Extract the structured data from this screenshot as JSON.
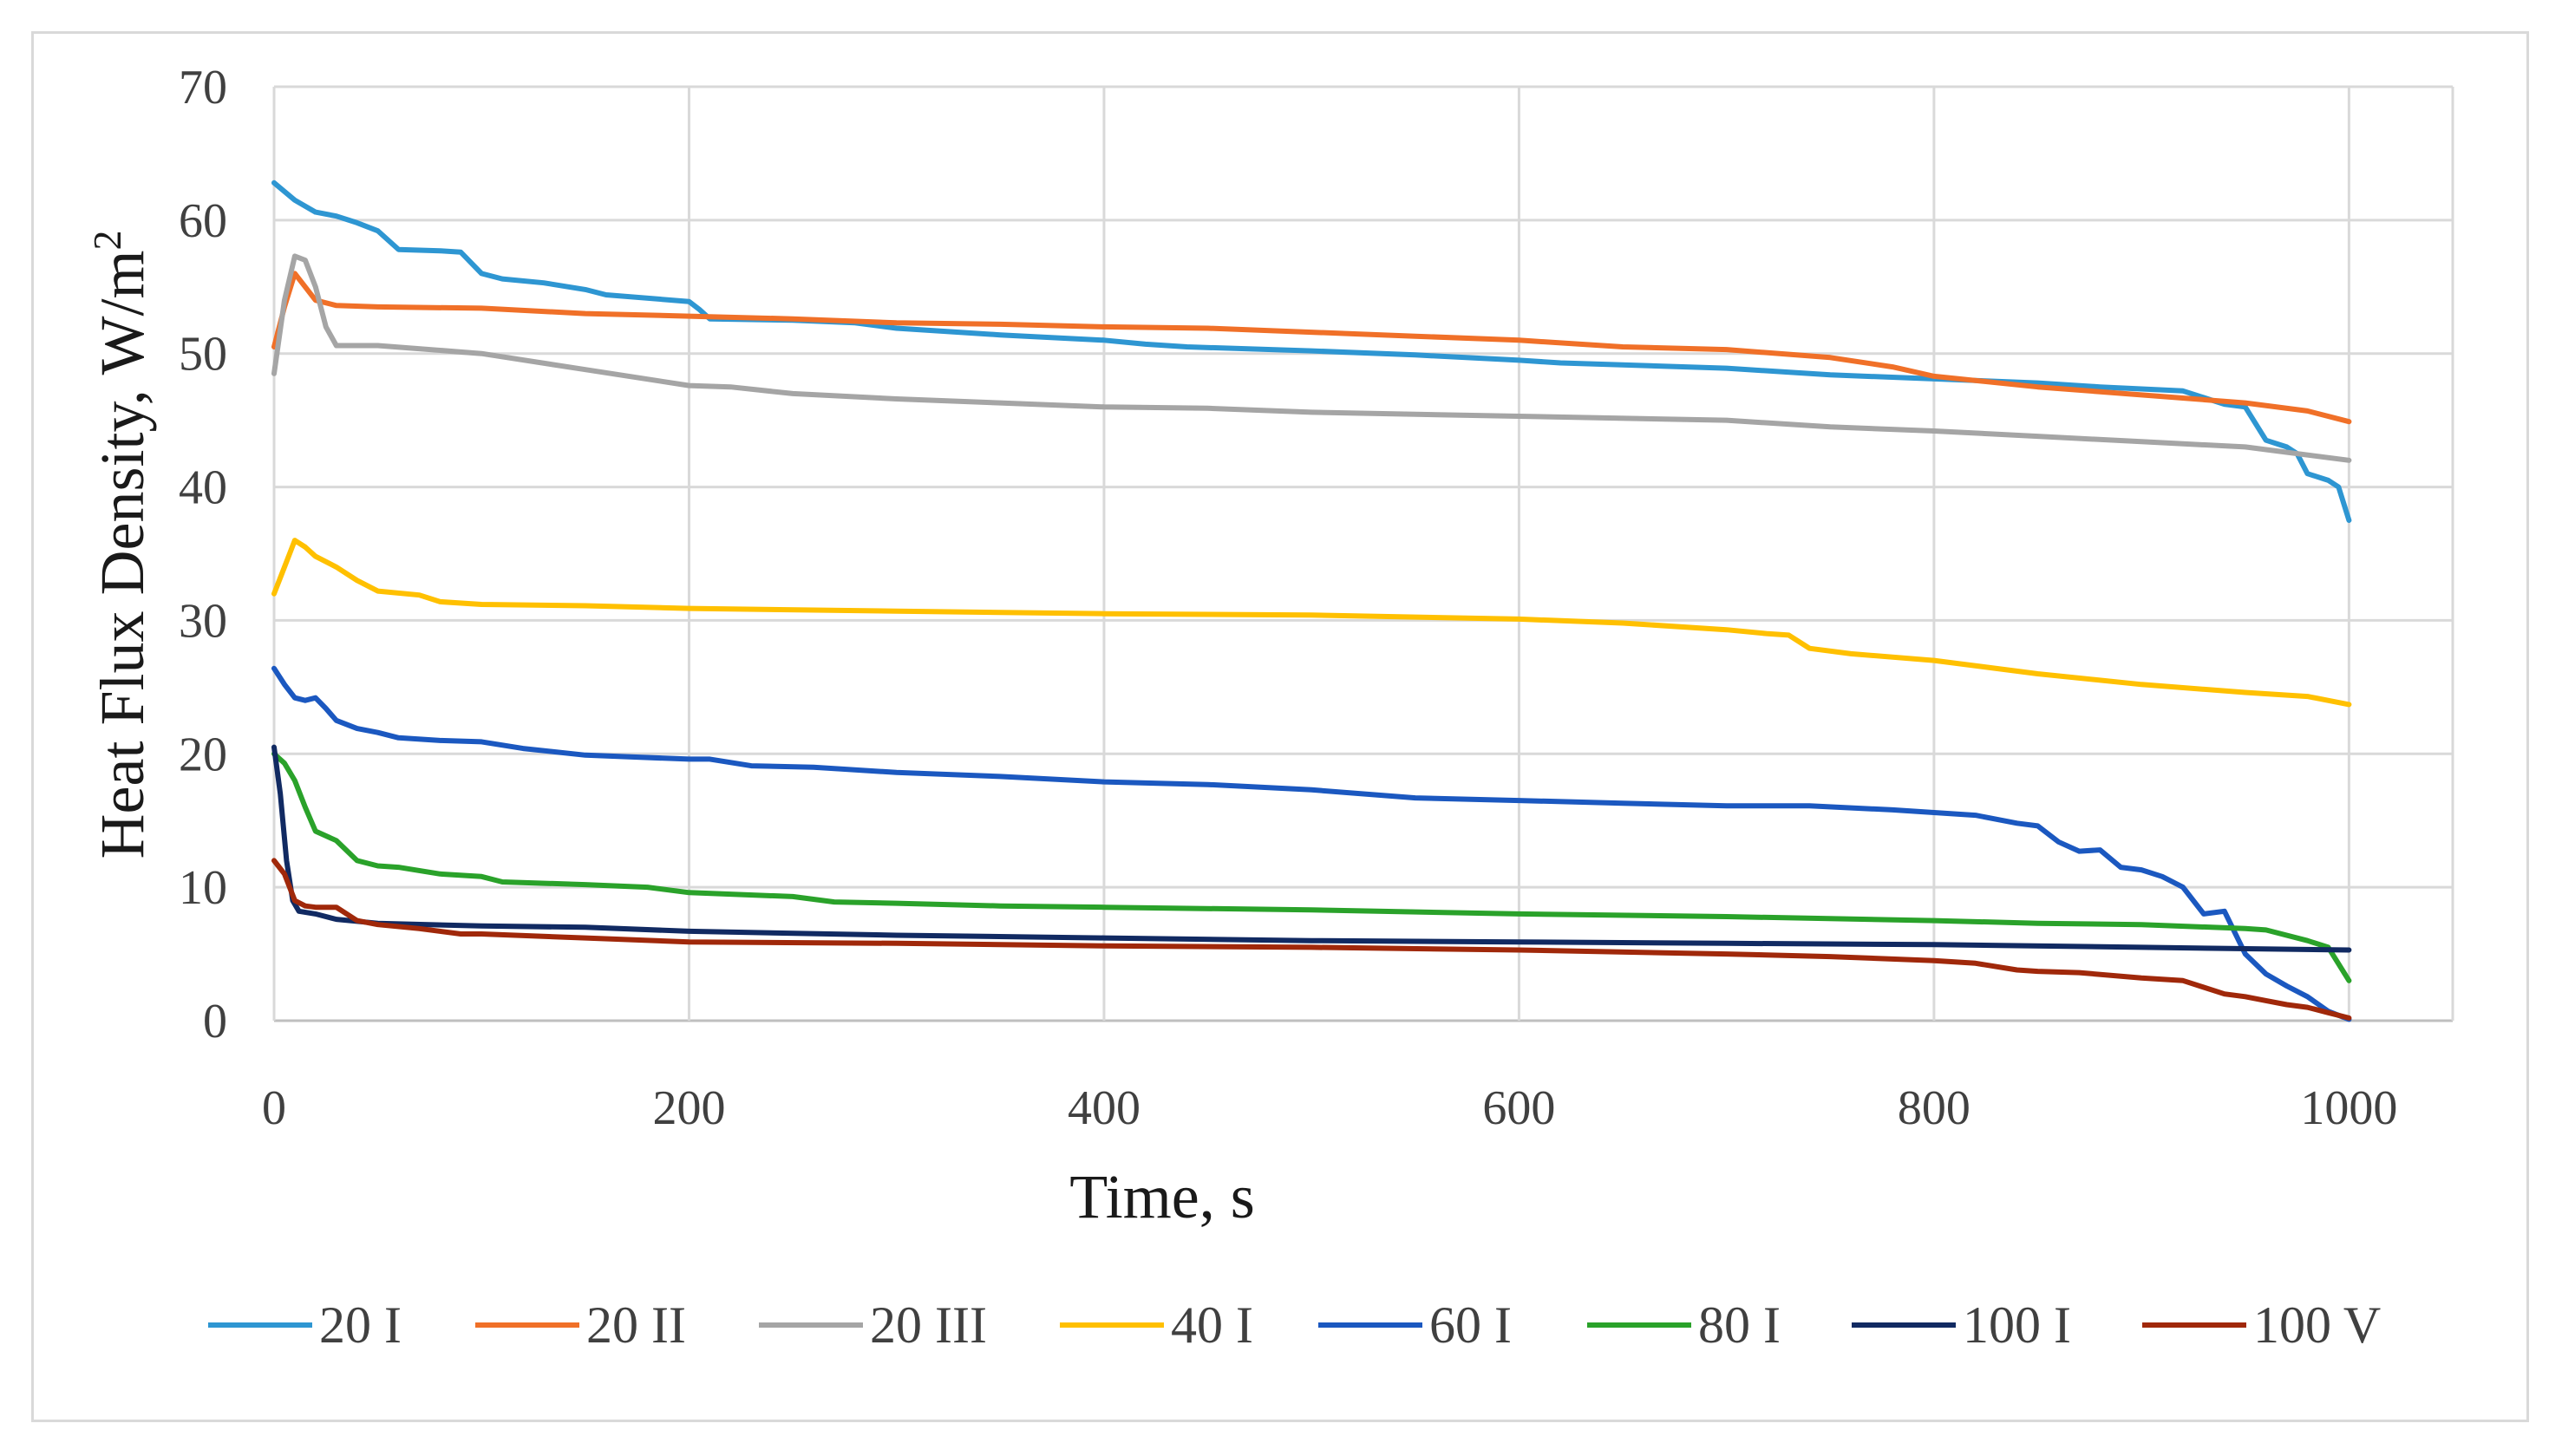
{
  "chart_data": {
    "type": "line",
    "title": "",
    "xlabel": "Time, s",
    "ylabel_base": "Heat Flux Density, W/m",
    "ylabel_sup": "2",
    "xlim": [
      0,
      1050
    ],
    "ylim": [
      0,
      70
    ],
    "xticks": [
      0,
      200,
      400,
      600,
      800,
      1000
    ],
    "yticks": [
      0,
      10,
      20,
      30,
      40,
      50,
      60,
      70
    ],
    "xtick_labels": [
      "0",
      "200",
      "400",
      "600",
      "800",
      "1000"
    ],
    "ytick_labels": [
      "0",
      "10",
      "20",
      "30",
      "40",
      "50",
      "60",
      "70"
    ],
    "grid": true,
    "legend_position": "bottom",
    "series": [
      {
        "name": "20 I",
        "color": "#2e96d2",
        "points": [
          [
            0,
            62.8
          ],
          [
            10,
            61.5
          ],
          [
            20,
            60.6
          ],
          [
            30,
            60.3
          ],
          [
            40,
            59.8
          ],
          [
            50,
            59.2
          ],
          [
            60,
            57.8
          ],
          [
            80,
            57.7
          ],
          [
            90,
            57.6
          ],
          [
            100,
            56.0
          ],
          [
            110,
            55.6
          ],
          [
            130,
            55.3
          ],
          [
            150,
            54.8
          ],
          [
            160,
            54.4
          ],
          [
            200,
            53.9
          ],
          [
            205,
            53.3
          ],
          [
            210,
            52.6
          ],
          [
            250,
            52.5
          ],
          [
            280,
            52.3
          ],
          [
            300,
            51.9
          ],
          [
            350,
            51.4
          ],
          [
            400,
            51.0
          ],
          [
            420,
            50.7
          ],
          [
            440,
            50.5
          ],
          [
            500,
            50.2
          ],
          [
            550,
            49.9
          ],
          [
            600,
            49.5
          ],
          [
            620,
            49.3
          ],
          [
            700,
            48.9
          ],
          [
            750,
            48.4
          ],
          [
            800,
            48.1
          ],
          [
            850,
            47.8
          ],
          [
            880,
            47.5
          ],
          [
            920,
            47.2
          ],
          [
            940,
            46.2
          ],
          [
            950,
            46.0
          ],
          [
            960,
            43.5
          ],
          [
            970,
            43.0
          ],
          [
            975,
            42.5
          ],
          [
            980,
            41.0
          ],
          [
            990,
            40.5
          ],
          [
            995,
            40.0
          ],
          [
            1000,
            37.5
          ]
        ]
      },
      {
        "name": "20 II",
        "color": "#f07028",
        "points": [
          [
            0,
            50.5
          ],
          [
            5,
            53.5
          ],
          [
            10,
            56.0
          ],
          [
            15,
            55.0
          ],
          [
            20,
            54.0
          ],
          [
            30,
            53.6
          ],
          [
            50,
            53.5
          ],
          [
            100,
            53.4
          ],
          [
            150,
            53.0
          ],
          [
            200,
            52.8
          ],
          [
            250,
            52.6
          ],
          [
            300,
            52.3
          ],
          [
            350,
            52.2
          ],
          [
            400,
            52.0
          ],
          [
            450,
            51.9
          ],
          [
            500,
            51.6
          ],
          [
            550,
            51.3
          ],
          [
            600,
            51.0
          ],
          [
            650,
            50.5
          ],
          [
            700,
            50.3
          ],
          [
            750,
            49.7
          ],
          [
            780,
            49.0
          ],
          [
            800,
            48.3
          ],
          [
            850,
            47.5
          ],
          [
            900,
            46.9
          ],
          [
            950,
            46.3
          ],
          [
            980,
            45.7
          ],
          [
            1000,
            44.9
          ]
        ]
      },
      {
        "name": "20 III",
        "color": "#a5a5a5",
        "points": [
          [
            0,
            48.5
          ],
          [
            5,
            54.0
          ],
          [
            10,
            57.3
          ],
          [
            15,
            57.0
          ],
          [
            20,
            55.0
          ],
          [
            25,
            52.0
          ],
          [
            30,
            50.6
          ],
          [
            50,
            50.6
          ],
          [
            100,
            50.0
          ],
          [
            150,
            48.8
          ],
          [
            200,
            47.6
          ],
          [
            220,
            47.5
          ],
          [
            250,
            47.0
          ],
          [
            300,
            46.6
          ],
          [
            350,
            46.3
          ],
          [
            400,
            46.0
          ],
          [
            450,
            45.9
          ],
          [
            500,
            45.6
          ],
          [
            600,
            45.3
          ],
          [
            700,
            45.0
          ],
          [
            750,
            44.5
          ],
          [
            800,
            44.2
          ],
          [
            850,
            43.8
          ],
          [
            900,
            43.4
          ],
          [
            950,
            43.0
          ],
          [
            1000,
            42.0
          ]
        ]
      },
      {
        "name": "40 I",
        "color": "#ffc000",
        "points": [
          [
            0,
            32.0
          ],
          [
            5,
            34.0
          ],
          [
            10,
            36.0
          ],
          [
            15,
            35.5
          ],
          [
            20,
            34.8
          ],
          [
            30,
            34.0
          ],
          [
            40,
            33.0
          ],
          [
            50,
            32.2
          ],
          [
            70,
            31.9
          ],
          [
            80,
            31.4
          ],
          [
            100,
            31.2
          ],
          [
            150,
            31.1
          ],
          [
            200,
            30.9
          ],
          [
            300,
            30.7
          ],
          [
            400,
            30.5
          ],
          [
            500,
            30.4
          ],
          [
            600,
            30.1
          ],
          [
            650,
            29.8
          ],
          [
            700,
            29.3
          ],
          [
            720,
            29.0
          ],
          [
            730,
            28.9
          ],
          [
            740,
            27.9
          ],
          [
            760,
            27.5
          ],
          [
            800,
            27.0
          ],
          [
            850,
            26.0
          ],
          [
            900,
            25.2
          ],
          [
            950,
            24.6
          ],
          [
            980,
            24.3
          ],
          [
            1000,
            23.7
          ]
        ]
      },
      {
        "name": "60 I",
        "color": "#1b58c0",
        "points": [
          [
            0,
            26.4
          ],
          [
            5,
            25.2
          ],
          [
            10,
            24.2
          ],
          [
            15,
            24.0
          ],
          [
            20,
            24.2
          ],
          [
            25,
            23.4
          ],
          [
            30,
            22.5
          ],
          [
            40,
            21.9
          ],
          [
            50,
            21.6
          ],
          [
            60,
            21.2
          ],
          [
            80,
            21.0
          ],
          [
            100,
            20.9
          ],
          [
            120,
            20.4
          ],
          [
            150,
            19.9
          ],
          [
            200,
            19.6
          ],
          [
            210,
            19.6
          ],
          [
            230,
            19.1
          ],
          [
            260,
            19.0
          ],
          [
            300,
            18.6
          ],
          [
            350,
            18.3
          ],
          [
            400,
            17.9
          ],
          [
            450,
            17.7
          ],
          [
            500,
            17.3
          ],
          [
            550,
            16.7
          ],
          [
            600,
            16.5
          ],
          [
            650,
            16.3
          ],
          [
            700,
            16.1
          ],
          [
            740,
            16.1
          ],
          [
            780,
            15.8
          ],
          [
            800,
            15.6
          ],
          [
            820,
            15.4
          ],
          [
            840,
            14.8
          ],
          [
            850,
            14.6
          ],
          [
            860,
            13.4
          ],
          [
            870,
            12.7
          ],
          [
            880,
            12.8
          ],
          [
            890,
            11.5
          ],
          [
            900,
            11.3
          ],
          [
            910,
            10.8
          ],
          [
            920,
            10.0
          ],
          [
            930,
            8.0
          ],
          [
            940,
            8.2
          ],
          [
            950,
            5.0
          ],
          [
            960,
            3.5
          ],
          [
            970,
            2.6
          ],
          [
            980,
            1.8
          ],
          [
            990,
            0.7
          ],
          [
            1000,
            0.1
          ]
        ]
      },
      {
        "name": "80 I",
        "color": "#2aa22a",
        "points": [
          [
            0,
            20.0
          ],
          [
            5,
            19.3
          ],
          [
            10,
            18.0
          ],
          [
            15,
            16.0
          ],
          [
            20,
            14.2
          ],
          [
            30,
            13.5
          ],
          [
            40,
            12.0
          ],
          [
            50,
            11.6
          ],
          [
            60,
            11.5
          ],
          [
            80,
            11.0
          ],
          [
            100,
            10.8
          ],
          [
            110,
            10.4
          ],
          [
            150,
            10.2
          ],
          [
            180,
            10.0
          ],
          [
            200,
            9.6
          ],
          [
            250,
            9.3
          ],
          [
            270,
            8.9
          ],
          [
            300,
            8.8
          ],
          [
            350,
            8.6
          ],
          [
            400,
            8.5
          ],
          [
            500,
            8.3
          ],
          [
            600,
            8.0
          ],
          [
            700,
            7.8
          ],
          [
            800,
            7.5
          ],
          [
            850,
            7.3
          ],
          [
            900,
            7.2
          ],
          [
            950,
            6.9
          ],
          [
            960,
            6.8
          ],
          [
            980,
            6.0
          ],
          [
            990,
            5.5
          ],
          [
            1000,
            3.0
          ]
        ]
      },
      {
        "name": "100 I",
        "color": "#112a62",
        "points": [
          [
            0,
            20.5
          ],
          [
            3,
            17.0
          ],
          [
            6,
            12.0
          ],
          [
            9,
            9.0
          ],
          [
            12,
            8.2
          ],
          [
            20,
            8.0
          ],
          [
            30,
            7.6
          ],
          [
            50,
            7.3
          ],
          [
            100,
            7.1
          ],
          [
            150,
            7.0
          ],
          [
            200,
            6.7
          ],
          [
            300,
            6.4
          ],
          [
            400,
            6.2
          ],
          [
            500,
            6.0
          ],
          [
            600,
            5.9
          ],
          [
            700,
            5.8
          ],
          [
            800,
            5.7
          ],
          [
            900,
            5.5
          ],
          [
            1000,
            5.3
          ]
        ]
      },
      {
        "name": "100 V",
        "color": "#a0280a",
        "points": [
          [
            0,
            12.0
          ],
          [
            5,
            11.0
          ],
          [
            10,
            9.0
          ],
          [
            15,
            8.6
          ],
          [
            20,
            8.5
          ],
          [
            30,
            8.5
          ],
          [
            40,
            7.5
          ],
          [
            50,
            7.2
          ],
          [
            70,
            6.9
          ],
          [
            90,
            6.5
          ],
          [
            100,
            6.5
          ],
          [
            150,
            6.2
          ],
          [
            200,
            5.9
          ],
          [
            300,
            5.8
          ],
          [
            400,
            5.6
          ],
          [
            500,
            5.5
          ],
          [
            600,
            5.3
          ],
          [
            700,
            5.0
          ],
          [
            750,
            4.8
          ],
          [
            800,
            4.5
          ],
          [
            820,
            4.3
          ],
          [
            840,
            3.8
          ],
          [
            850,
            3.7
          ],
          [
            870,
            3.6
          ],
          [
            900,
            3.2
          ],
          [
            920,
            3.0
          ],
          [
            930,
            2.5
          ],
          [
            940,
            2.0
          ],
          [
            950,
            1.8
          ],
          [
            960,
            1.5
          ],
          [
            970,
            1.2
          ],
          [
            980,
            1.0
          ],
          [
            990,
            0.6
          ],
          [
            1000,
            0.2
          ]
        ]
      }
    ]
  }
}
